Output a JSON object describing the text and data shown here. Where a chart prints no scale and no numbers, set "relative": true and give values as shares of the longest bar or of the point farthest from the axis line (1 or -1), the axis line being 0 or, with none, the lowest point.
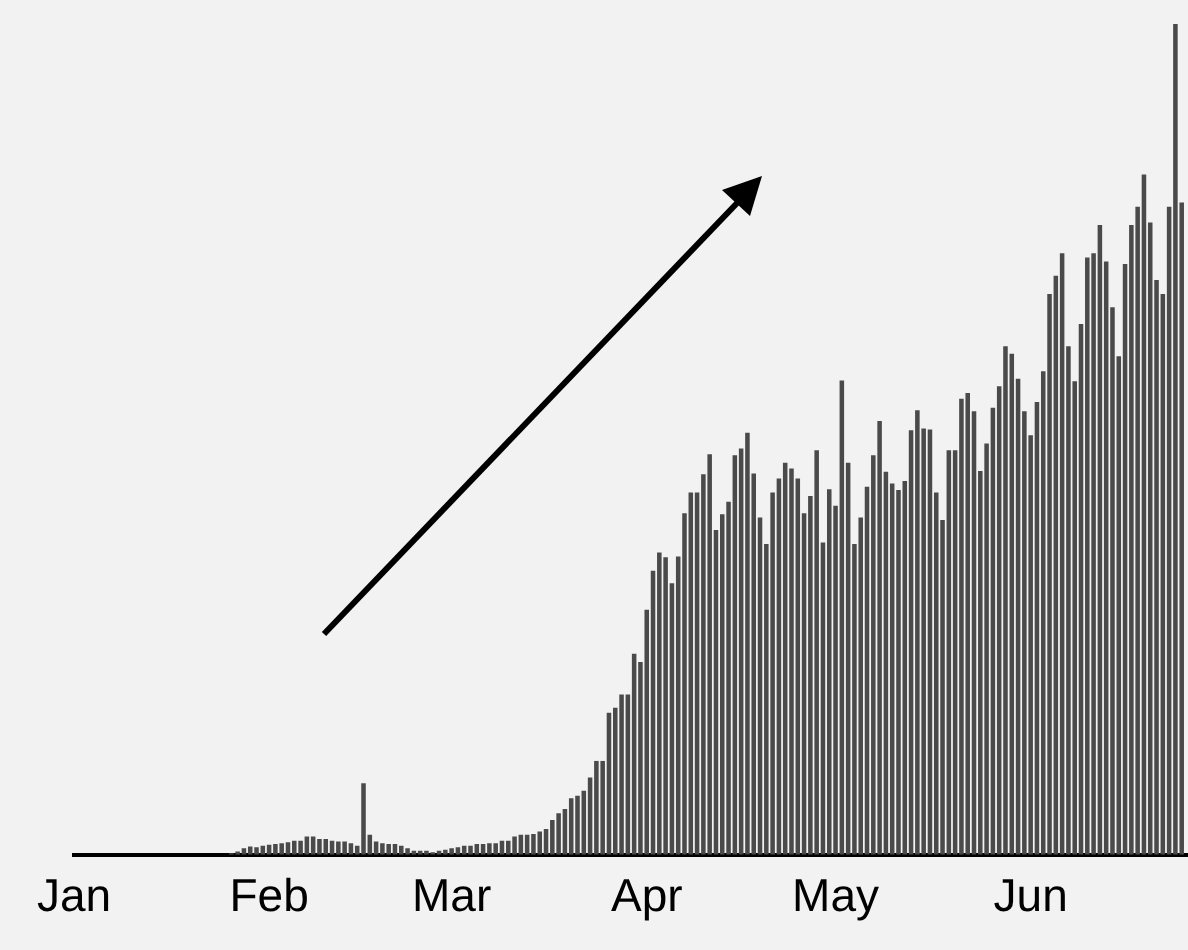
{
  "chart_data": {
    "type": "bar",
    "relative": true,
    "color": "#4a4a4a",
    "xlim": [
      "--01-01",
      "--06-26"
    ],
    "xticks": [
      {
        "value": "--01-01",
        "label": "Jan"
      },
      {
        "value": "--02-01",
        "label": "Feb"
      },
      {
        "value": "--03-01",
        "label": "Mar"
      },
      {
        "value": "--04-01",
        "label": "Apr"
      },
      {
        "value": "--05-01",
        "label": "May"
      },
      {
        "value": "--06-01",
        "label": "Jun"
      }
    ],
    "x": [
      "--01-26",
      "--01-27",
      "--01-28",
      "--01-29",
      "--01-30",
      "--01-31",
      "--02-01",
      "--02-02",
      "--02-03",
      "--02-04",
      "--02-05",
      "--02-06",
      "--02-07",
      "--02-08",
      "--02-09",
      "--02-10",
      "--02-11",
      "--02-12",
      "--02-13",
      "--02-14",
      "--02-15",
      "--02-16",
      "--02-17",
      "--02-18",
      "--02-19",
      "--02-20",
      "--02-21",
      "--02-22",
      "--02-23",
      "--02-24",
      "--02-25",
      "--02-26",
      "--02-27",
      "--02-28",
      "--02-29",
      "--03-01",
      "--03-02",
      "--03-03",
      "--03-04",
      "--03-05",
      "--03-06",
      "--03-07",
      "--03-08",
      "--03-09",
      "--03-10",
      "--03-11",
      "--03-12",
      "--03-13",
      "--03-14",
      "--03-15",
      "--03-16",
      "--03-17",
      "--03-18",
      "--03-19",
      "--03-20",
      "--03-21",
      "--03-22",
      "--03-23",
      "--03-24",
      "--03-25",
      "--03-26",
      "--03-27",
      "--03-28",
      "--03-29",
      "--03-30",
      "--03-31",
      "--04-01",
      "--04-02",
      "--04-03",
      "--04-04",
      "--04-05",
      "--04-06",
      "--04-07",
      "--04-08",
      "--04-09",
      "--04-10",
      "--04-11",
      "--04-12",
      "--04-13",
      "--04-14",
      "--04-15",
      "--04-16",
      "--04-17",
      "--04-18",
      "--04-19",
      "--04-20",
      "--04-21",
      "--04-22",
      "--04-23",
      "--04-24",
      "--04-25",
      "--04-26",
      "--04-27",
      "--04-28",
      "--04-29",
      "--04-30",
      "--05-01",
      "--05-02",
      "--05-03",
      "--05-04",
      "--05-05",
      "--05-06",
      "--05-07",
      "--05-08",
      "--05-09",
      "--05-10",
      "--05-11",
      "--05-12",
      "--05-13",
      "--05-14",
      "--05-15",
      "--05-16",
      "--05-17",
      "--05-18",
      "--05-19",
      "--05-20",
      "--05-21",
      "--05-22",
      "--05-23",
      "--05-24",
      "--05-25",
      "--05-26",
      "--05-27",
      "--05-28",
      "--05-29",
      "--05-30",
      "--05-31",
      "--06-01",
      "--06-02",
      "--06-03",
      "--06-04",
      "--06-05",
      "--06-06",
      "--06-07",
      "--06-08",
      "--06-09",
      "--06-10",
      "--06-11",
      "--06-12",
      "--06-13",
      "--06-14",
      "--06-15",
      "--06-16",
      "--06-17",
      "--06-18",
      "--06-19",
      "--06-20",
      "--06-21",
      "--06-22",
      "--06-23",
      "--06-24",
      "--06-25"
    ],
    "values": [
      0.002,
      0.004,
      0.008,
      0.01,
      0.009,
      0.011,
      0.012,
      0.013,
      0.014,
      0.015,
      0.017,
      0.017,
      0.022,
      0.022,
      0.019,
      0.019,
      0.017,
      0.016,
      0.016,
      0.014,
      0.011,
      0.086,
      0.024,
      0.016,
      0.014,
      0.013,
      0.013,
      0.011,
      0.008,
      0.005,
      0.005,
      0.005,
      0.003,
      0.005,
      0.006,
      0.008,
      0.009,
      0.011,
      0.011,
      0.013,
      0.013,
      0.014,
      0.014,
      0.017,
      0.017,
      0.022,
      0.024,
      0.024,
      0.025,
      0.028,
      0.031,
      0.042,
      0.05,
      0.055,
      0.068,
      0.071,
      0.077,
      0.093,
      0.113,
      0.113,
      0.171,
      0.177,
      0.193,
      0.193,
      0.242,
      0.232,
      0.295,
      0.342,
      0.364,
      0.358,
      0.327,
      0.359,
      0.411,
      0.436,
      0.436,
      0.458,
      0.482,
      0.391,
      0.41,
      0.425,
      0.481,
      0.489,
      0.508,
      0.459,
      0.406,
      0.374,
      0.436,
      0.453,
      0.472,
      0.465,
      0.453,
      0.411,
      0.432,
      0.487,
      0.376,
      0.44,
      0.42,
      0.571,
      0.472,
      0.374,
      0.406,
      0.443,
      0.481,
      0.522,
      0.461,
      0.447,
      0.439,
      0.45,
      0.511,
      0.535,
      0.513,
      0.512,
      0.436,
      0.403,
      0.487,
      0.487,
      0.549,
      0.556,
      0.534,
      0.462,
      0.495,
      0.538,
      0.564,
      0.612,
      0.603,
      0.573,
      0.534,
      0.505,
      0.545,
      0.582,
      0.675,
      0.697,
      0.724,
      0.612,
      0.57,
      0.639,
      0.719,
      0.724,
      0.758,
      0.714,
      0.659,
      0.6,
      0.711,
      0.758,
      0.78,
      0.819,
      0.761,
      0.692,
      0.675,
      0.78,
      1,
      0.785
    ]
  }
}
